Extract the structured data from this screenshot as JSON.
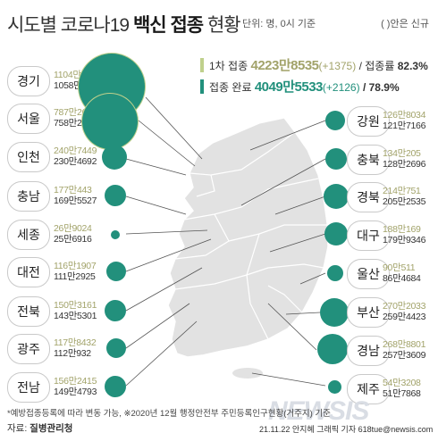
{
  "header": {
    "title_prefix": "시도별 코로나19",
    "title_bold": "백신 접종",
    "title_suffix": "현황",
    "subtitle": "단위: 명, 0시 기준",
    "new_legend": "( )안은 신규"
  },
  "summary": {
    "first": {
      "label": "1차 접종",
      "value": "4223만8535",
      "new": "(+1375)",
      "rate_label": "/ 접종률",
      "rate": "82.3%"
    },
    "complete": {
      "label": "접종 완료",
      "value": "4049만5533",
      "new": "(+2126)",
      "rate": "/ 78.9%"
    }
  },
  "colors": {
    "first": "#bfd08c",
    "complete": "#22907c",
    "first_text": "#a2a36a"
  },
  "regions": {
    "gyeonggi": {
      "name": "경기",
      "first": "1104만9351",
      "complete": "1058만9819"
    },
    "seoul": {
      "name": "서울",
      "first": "787만2641",
      "complete": "758만2301"
    },
    "incheon": {
      "name": "인천",
      "first": "240만7449",
      "complete": "230만4692"
    },
    "chungnam": {
      "name": "충남",
      "first": "177만443",
      "complete": "169만5527"
    },
    "sejong": {
      "name": "세종",
      "first": "26만9024",
      "complete": "25만6916"
    },
    "daejeon": {
      "name": "대전",
      "first": "116만1907",
      "complete": "111만2925"
    },
    "jeonbuk": {
      "name": "전북",
      "first": "150만3161",
      "complete": "143만5301"
    },
    "gwangju": {
      "name": "광주",
      "first": "117만8432",
      "complete": "112만932"
    },
    "jeonnam": {
      "name": "전남",
      "first": "156만2415",
      "complete": "149만4793"
    },
    "gangwon": {
      "name": "강원",
      "first": "126만8034",
      "complete": "121만7166"
    },
    "chungbuk": {
      "name": "충북",
      "first": "134만205",
      "complete": "128만2696"
    },
    "gyeongbuk": {
      "name": "경북",
      "first": "214만751",
      "complete": "205만2535"
    },
    "daegu": {
      "name": "대구",
      "first": "188만169",
      "complete": "179만9346"
    },
    "ulsan": {
      "name": "울산",
      "first": "90만511",
      "complete": "86만4684"
    },
    "busan": {
      "name": "부산",
      "first": "270만2033",
      "complete": "259만4423"
    },
    "gyeongnam": {
      "name": "경남",
      "first": "268만8801",
      "complete": "257만3609"
    },
    "jeju": {
      "name": "제주",
      "first": "54만3208",
      "complete": "51만7868"
    }
  },
  "footer": {
    "note": "*예방접종등록에 따라 변동 가능, ※2020년 12월 행정안전부 주민등록인구현황(거주지) 기준",
    "source_label": "자료:",
    "source_org": "질병관리청",
    "credit": "21.11.22 안지혜 그래픽 기자 618tue@newsis.com",
    "watermark": "NEWSIS"
  }
}
